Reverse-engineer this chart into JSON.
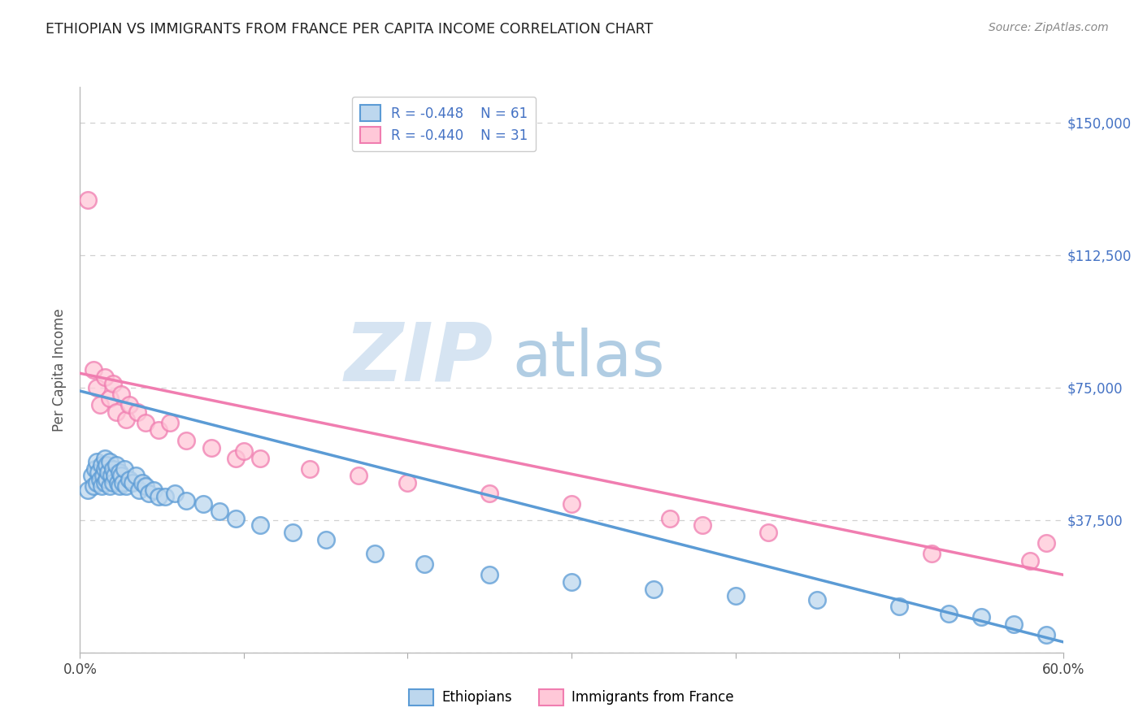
{
  "title": "ETHIOPIAN VS IMMIGRANTS FROM FRANCE PER CAPITA INCOME CORRELATION CHART",
  "source": "Source: ZipAtlas.com",
  "ylabel": "Per Capita Income",
  "y_ticks": [
    0,
    37500,
    75000,
    112500,
    150000
  ],
  "y_tick_labels": [
    "",
    "$37,500",
    "$75,000",
    "$112,500",
    "$150,000"
  ],
  "x_min": 0.0,
  "x_max": 0.6,
  "y_min": 0,
  "y_max": 160000,
  "legend_r_blue": "R = -0.448",
  "legend_n_blue": "N = 61",
  "legend_r_pink": "R = -0.440",
  "legend_n_pink": "N = 31",
  "legend_label_blue": "Ethiopians",
  "legend_label_pink": "Immigrants from France",
  "blue_color": "#5b9bd5",
  "pink_color": "#f07db0",
  "blue_fill": "#bdd7ee",
  "pink_fill": "#ffc8d8",
  "blue_scatter_x": [
    0.005,
    0.007,
    0.008,
    0.009,
    0.01,
    0.01,
    0.011,
    0.012,
    0.013,
    0.013,
    0.014,
    0.015,
    0.015,
    0.015,
    0.016,
    0.016,
    0.017,
    0.018,
    0.018,
    0.019,
    0.02,
    0.02,
    0.021,
    0.022,
    0.023,
    0.024,
    0.024,
    0.025,
    0.026,
    0.027,
    0.028,
    0.03,
    0.032,
    0.034,
    0.036,
    0.038,
    0.04,
    0.042,
    0.045,
    0.048,
    0.052,
    0.058,
    0.065,
    0.075,
    0.085,
    0.095,
    0.11,
    0.13,
    0.15,
    0.18,
    0.21,
    0.25,
    0.3,
    0.35,
    0.4,
    0.45,
    0.5,
    0.53,
    0.55,
    0.57,
    0.59
  ],
  "blue_scatter_y": [
    46000,
    50000,
    47000,
    52000,
    54000,
    48000,
    51000,
    49000,
    53000,
    47000,
    50000,
    55000,
    52000,
    48000,
    53000,
    49000,
    51000,
    54000,
    47000,
    50000,
    52000,
    48000,
    50000,
    53000,
    48000,
    51000,
    47000,
    50000,
    48000,
    52000,
    47000,
    49000,
    48000,
    50000,
    46000,
    48000,
    47000,
    45000,
    46000,
    44000,
    44000,
    45000,
    43000,
    42000,
    40000,
    38000,
    36000,
    34000,
    32000,
    28000,
    25000,
    22000,
    20000,
    18000,
    16000,
    15000,
    13000,
    11000,
    10000,
    8000,
    5000
  ],
  "pink_scatter_x": [
    0.005,
    0.008,
    0.01,
    0.012,
    0.015,
    0.018,
    0.02,
    0.022,
    0.025,
    0.028,
    0.03,
    0.035,
    0.04,
    0.048,
    0.055,
    0.065,
    0.08,
    0.095,
    0.11,
    0.14,
    0.17,
    0.2,
    0.25,
    0.3,
    0.36,
    0.42,
    0.52,
    0.58,
    0.59,
    0.1,
    0.38
  ],
  "pink_scatter_y": [
    128000,
    80000,
    75000,
    70000,
    78000,
    72000,
    76000,
    68000,
    73000,
    66000,
    70000,
    68000,
    65000,
    63000,
    65000,
    60000,
    58000,
    55000,
    55000,
    52000,
    50000,
    48000,
    45000,
    42000,
    38000,
    34000,
    28000,
    26000,
    31000,
    57000,
    36000
  ],
  "blue_trend_x": [
    0.0,
    0.6
  ],
  "blue_trend_y": [
    74000,
    3000
  ],
  "pink_trend_x": [
    0.0,
    0.6
  ],
  "pink_trend_y": [
    79000,
    22000
  ],
  "watermark_zip": "ZIP",
  "watermark_atlas": "atlas",
  "background_color": "#ffffff",
  "grid_color": "#d0d0d0",
  "title_color": "#222222",
  "axis_label_color": "#555555",
  "right_axis_color": "#4472c4",
  "watermark_color_zip": "#cfe0f0",
  "watermark_color_atlas": "#90b8d8"
}
